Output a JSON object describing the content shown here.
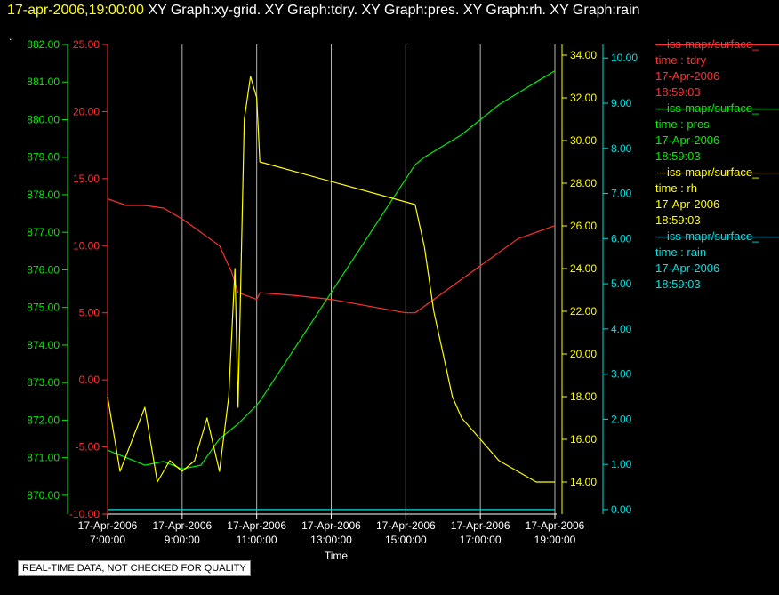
{
  "title": {
    "timestamp": "17-apr-2006,19:00:00",
    "graphs": "XY Graph:xy-grid.  XY Graph:tdry.  XY Graph:pres.  XY Graph:rh.  XY Graph:rain"
  },
  "corner_mark": ".",
  "notice": "REAL-TIME DATA, NOT CHECKED FOR QUALITY",
  "legend": [
    {
      "name": "—iss-mapr/surface_",
      "label": "time : tdry",
      "date": "17-Apr-2006",
      "time": "18:59:03",
      "color": "#ff3030"
    },
    {
      "name": "—iss-mapr/surface_",
      "label": "time : pres",
      "date": "17-Apr-2006",
      "time": "18:59:03",
      "color": "#00ee00"
    },
    {
      "name": "—iss-mapr/surface_",
      "label": "time : rh",
      "date": "17-Apr-2006",
      "time": "18:59:03",
      "color": "#ffff00"
    },
    {
      "name": "—iss-mapr/surface_",
      "label": "time : rain",
      "date": "17-Apr-2006",
      "time": "18:59:03",
      "color": "#00e0e0"
    }
  ],
  "chart_data": {
    "type": "line",
    "xlabel": "Time",
    "x_ticks": [
      {
        "date": "17-Apr-2006",
        "time": "7:00:00"
      },
      {
        "date": "17-Apr-2006",
        "time": "9:00:00"
      },
      {
        "date": "17-Apr-2006",
        "time": "11:00:00"
      },
      {
        "date": "17-Apr-2006",
        "time": "13:00:00"
      },
      {
        "date": "17-Apr-2006",
        "time": "15:00:00"
      },
      {
        "date": "17-Apr-2006",
        "time": "17:00:00"
      },
      {
        "date": "17-Apr-2006",
        "time": "19:00:00"
      }
    ],
    "x_hours_range": [
      7,
      19
    ],
    "grid": true,
    "axes": {
      "pres": {
        "color": "#00ee00",
        "min": 869.5,
        "max": 882,
        "ticks": [
          "882.00",
          "881.00",
          "880.00",
          "879.00",
          "878.00",
          "877.00",
          "876.00",
          "875.00",
          "874.00",
          "873.00",
          "872.00",
          "871.00",
          "870.00"
        ]
      },
      "tdry": {
        "color": "#ff3030",
        "min": -10,
        "max": 25,
        "ticks": [
          "25.00",
          "20.00",
          "15.00",
          "10.00",
          "5.00",
          "0.00",
          "-5.00",
          "-10.00"
        ]
      },
      "rh": {
        "color": "#ffff00",
        "min": 12.5,
        "max": 34.5,
        "ticks": [
          "34.00",
          "32.00",
          "30.00",
          "28.00",
          "26.00",
          "24.00",
          "22.00",
          "20.00",
          "18.00",
          "16.00",
          "14.00"
        ]
      },
      "rain": {
        "color": "#00e0e0",
        "min": -0.1,
        "max": 10.3,
        "ticks": [
          "10.00",
          "9.00",
          "8.00",
          "7.00",
          "6.00",
          "5.00",
          "4.00",
          "3.00",
          "2.00",
          "1.00",
          "0.00"
        ]
      }
    },
    "series": [
      {
        "name": "tdry",
        "axis": "tdry",
        "color": "#ff3030",
        "x": [
          "07:00",
          "07:30",
          "08:00",
          "08:30",
          "09:00",
          "09:30",
          "10:00",
          "10:10",
          "10:20",
          "10:30",
          "11:00",
          "11:05",
          "12:00",
          "13:00",
          "14:00",
          "15:00",
          "15:15",
          "15:30",
          "16:00",
          "16:30",
          "17:00",
          "17:30",
          "18:00",
          "18:30",
          "19:00"
        ],
        "y": [
          13.5,
          13.0,
          13.0,
          12.8,
          12.0,
          11.0,
          10.0,
          9.0,
          8.0,
          6.5,
          6.0,
          6.5,
          6.3,
          6.0,
          5.5,
          5.0,
          5.0,
          5.5,
          6.5,
          7.5,
          8.5,
          9.5,
          10.5,
          11.0,
          11.5
        ]
      },
      {
        "name": "pres",
        "axis": "pres",
        "color": "#00ee00",
        "x": [
          "07:00",
          "07:30",
          "08:00",
          "08:30",
          "09:00",
          "09:30",
          "10:00",
          "10:30",
          "11:00",
          "11:05",
          "15:15",
          "15:30",
          "16:00",
          "16:30",
          "17:00",
          "17:30",
          "18:00",
          "18:30",
          "19:00"
        ],
        "y": [
          871.2,
          871.0,
          870.8,
          870.9,
          870.7,
          870.8,
          871.5,
          871.9,
          872.4,
          872.5,
          878.8,
          879.0,
          879.3,
          879.6,
          880.0,
          880.4,
          880.7,
          881.0,
          881.3
        ]
      },
      {
        "name": "rh",
        "axis": "rh",
        "color": "#ffff00",
        "x": [
          "07:00",
          "07:20",
          "07:40",
          "08:00",
          "08:20",
          "08:40",
          "09:00",
          "09:20",
          "09:40",
          "10:00",
          "10:15",
          "10:25",
          "10:30",
          "10:40",
          "10:50",
          "11:00",
          "11:05",
          "15:15",
          "15:30",
          "15:45",
          "16:00",
          "16:15",
          "16:30",
          "17:00",
          "17:30",
          "18:00",
          "18:30",
          "19:00"
        ],
        "y": [
          18.0,
          14.5,
          16.0,
          17.5,
          14.0,
          15.0,
          14.5,
          15.0,
          17.0,
          14.5,
          18.0,
          24.0,
          17.5,
          31.0,
          33.0,
          32.0,
          29.0,
          27.0,
          25.0,
          22.0,
          20.0,
          18.0,
          17.0,
          16.0,
          15.0,
          14.5,
          14.0,
          14.0
        ]
      },
      {
        "name": "rain",
        "axis": "rain",
        "color": "#00e0e0",
        "x": [
          "07:00",
          "19:00"
        ],
        "y": [
          0.0,
          0.0
        ]
      }
    ]
  }
}
